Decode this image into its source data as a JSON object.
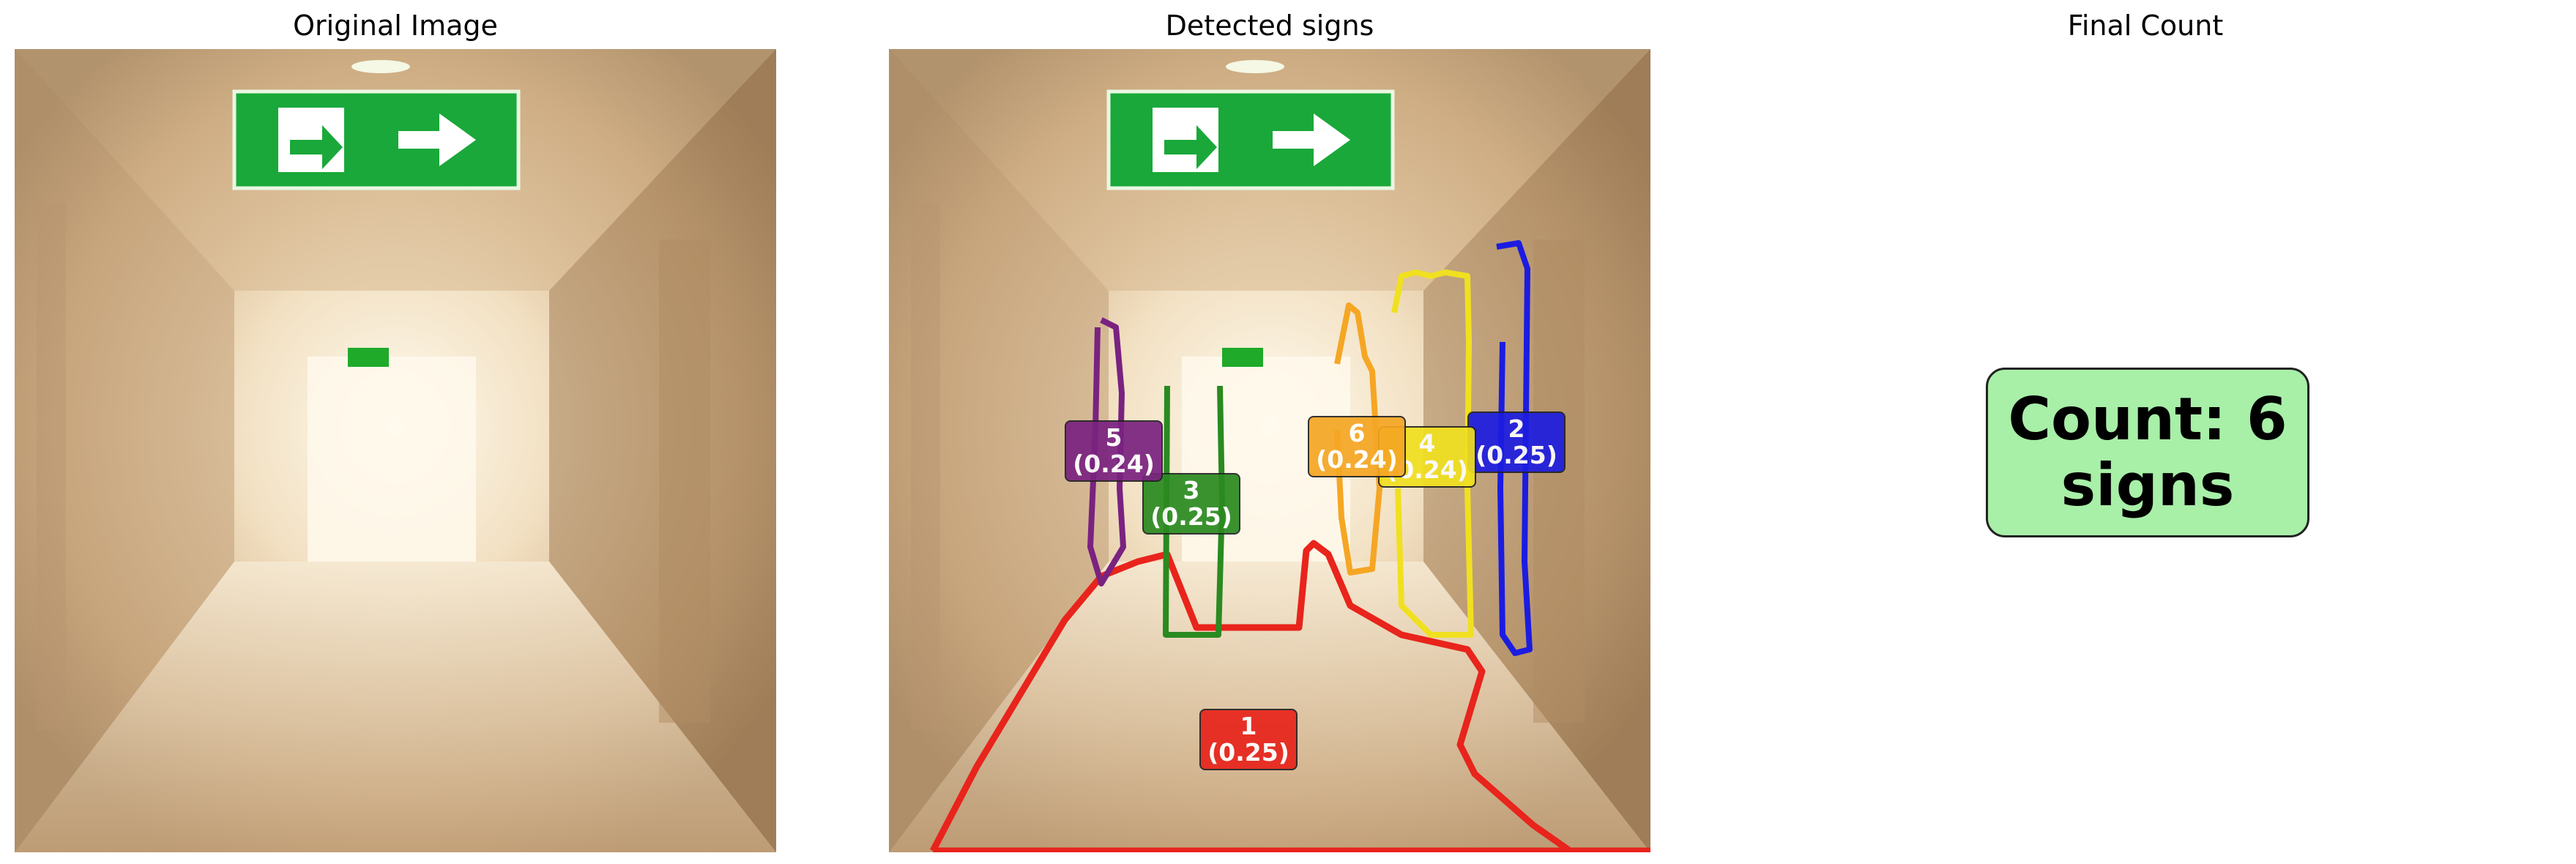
{
  "titles": {
    "left": "Original Image",
    "middle": "Detected signs",
    "right": "Final Count"
  },
  "detections": [
    {
      "id": "1",
      "score": "(0.25)",
      "color": "#e8241c"
    },
    {
      "id": "2",
      "score": "(0.25)",
      "color": "#1c1ce0"
    },
    {
      "id": "3",
      "score": "(0.25)",
      "color": "#2a8a20"
    },
    {
      "id": "4",
      "score": "(0.24)",
      "color": "#f0e020"
    },
    {
      "id": "5",
      "score": "(0.24)",
      "color": "#7a2280"
    },
    {
      "id": "6",
      "score": "(0.24)",
      "color": "#f5a623"
    }
  ],
  "count": {
    "line1": "Count: 6",
    "line2": "signs",
    "bg_color": "#a8efa8"
  }
}
